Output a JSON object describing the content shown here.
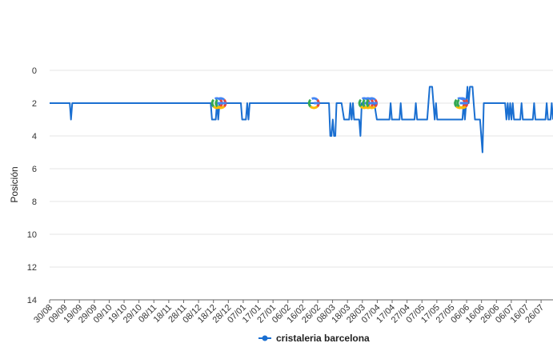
{
  "chart_data": {
    "type": "line",
    "ylabel": "Posición",
    "ylim": [
      0,
      14
    ],
    "y_inverted": true,
    "y_ticks": [
      0,
      2,
      4,
      6,
      8,
      10,
      12,
      14
    ],
    "x_tick_labels": [
      "30/08",
      "09/09",
      "19/09",
      "29/09",
      "09/10",
      "19/10",
      "29/10",
      "08/11",
      "18/11",
      "28/11",
      "08/12",
      "18/12",
      "28/12",
      "07/01",
      "17/01",
      "27/01",
      "06/02",
      "16/02",
      "26/02",
      "08/03",
      "18/03",
      "28/03",
      "07/04",
      "17/04",
      "27/04",
      "07/05",
      "17/05",
      "27/05",
      "06/06",
      "16/06",
      "26/06",
      "06/07",
      "16/07",
      "26/07"
    ],
    "grid": "horizontal",
    "legend": "bottom",
    "colors": {
      "series": "#1a6fd1",
      "grid": "#e6e6e6",
      "axis": "#666666"
    },
    "series": [
      {
        "name": "cristaleria barcelona",
        "points": [
          [
            0,
            2
          ],
          [
            8,
            2
          ],
          [
            8.5,
            3
          ],
          [
            9,
            2
          ],
          [
            64,
            2
          ],
          [
            64.5,
            3
          ],
          [
            66,
            3
          ],
          [
            66.5,
            2
          ],
          [
            67,
            3
          ],
          [
            67.5,
            2
          ],
          [
            76,
            2
          ],
          [
            76.5,
            3
          ],
          [
            78,
            3
          ],
          [
            78.5,
            2
          ],
          [
            79,
            3
          ],
          [
            79.5,
            2
          ],
          [
            111,
            2
          ],
          [
            111.5,
            4
          ],
          [
            112,
            4
          ],
          [
            112.5,
            3
          ],
          [
            113,
            4
          ],
          [
            113.5,
            4
          ],
          [
            114,
            2
          ],
          [
            116,
            2
          ],
          [
            117,
            3
          ],
          [
            119,
            3
          ],
          [
            119.5,
            2
          ],
          [
            120,
            3
          ],
          [
            120.5,
            2
          ],
          [
            121,
            3
          ],
          [
            123,
            3
          ],
          [
            123.5,
            4
          ],
          [
            124,
            2
          ],
          [
            129,
            2
          ],
          [
            130,
            3
          ],
          [
            135,
            3
          ],
          [
            135.5,
            2
          ],
          [
            136,
            3
          ],
          [
            139,
            3
          ],
          [
            139.5,
            2
          ],
          [
            140,
            3
          ],
          [
            145,
            3
          ],
          [
            145.5,
            2
          ],
          [
            146,
            3
          ],
          [
            150,
            3
          ],
          [
            151,
            1
          ],
          [
            152,
            1
          ],
          [
            153,
            3
          ],
          [
            153.5,
            2
          ],
          [
            154,
            3
          ],
          [
            164,
            3
          ],
          [
            164.5,
            2
          ],
          [
            165,
            3
          ],
          [
            166,
            1
          ],
          [
            166.5,
            2
          ],
          [
            167,
            1
          ],
          [
            168,
            1
          ],
          [
            168.5,
            2
          ],
          [
            169,
            3
          ],
          [
            171,
            3
          ],
          [
            172,
            5
          ],
          [
            172.5,
            2
          ],
          [
            181,
            2
          ],
          [
            181.5,
            3
          ],
          [
            182,
            2
          ],
          [
            182.5,
            3
          ],
          [
            183,
            2
          ],
          [
            183.5,
            3
          ],
          [
            184,
            2
          ],
          [
            184.5,
            3
          ],
          [
            185,
            3
          ],
          [
            187,
            3
          ],
          [
            187.5,
            2
          ],
          [
            188,
            3
          ],
          [
            192,
            3
          ],
          [
            192.5,
            2
          ],
          [
            193,
            3
          ],
          [
            197,
            3
          ],
          [
            197.5,
            2
          ],
          [
            198,
            3
          ],
          [
            199,
            3
          ],
          [
            199.5,
            2
          ],
          [
            200,
            3
          ]
        ]
      }
    ],
    "annotations": [
      {
        "icon": "google-update-icon",
        "x": 66.5,
        "y": 2
      },
      {
        "icon": "google-update-icon",
        "x": 68,
        "y": 2
      },
      {
        "icon": "google-update-icon",
        "x": 105,
        "y": 2
      },
      {
        "icon": "google-update-icon",
        "x": 125,
        "y": 2
      },
      {
        "icon": "google-update-icon",
        "x": 126.5,
        "y": 2
      },
      {
        "icon": "google-update-icon",
        "x": 128,
        "y": 2
      },
      {
        "icon": "google-update-icon",
        "x": 163,
        "y": 2
      },
      {
        "icon": "google-update-icon",
        "x": 164,
        "y": 2
      }
    ]
  }
}
